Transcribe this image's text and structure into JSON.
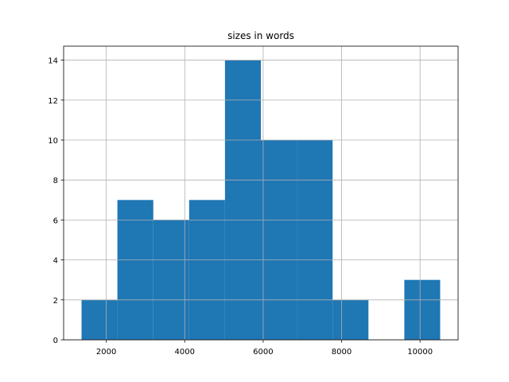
{
  "chart_data": {
    "type": "histogram",
    "title": "sizes in words",
    "bins": [
      1369,
      2283,
      3198,
      4112,
      5026,
      5941,
      6855,
      7770,
      8684,
      9599,
      10513
    ],
    "values": [
      2,
      7,
      6,
      7,
      14,
      10,
      10,
      2,
      0,
      3
    ],
    "color": "#1f77b4",
    "xlim": [
      912,
      10970
    ],
    "xticks": [
      2000,
      4000,
      6000,
      8000,
      10000
    ],
    "ylim": [
      0,
      14.7
    ],
    "yticks": [
      0,
      2,
      4,
      6,
      8,
      10,
      12,
      14
    ],
    "grid": true
  }
}
